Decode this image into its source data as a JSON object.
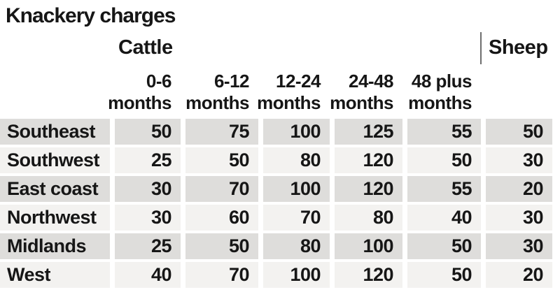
{
  "title": "Knackery charges",
  "groups": {
    "cattle": "Cattle",
    "sheep": "Sheep"
  },
  "columns": [
    {
      "range": "0-6",
      "unit": "months"
    },
    {
      "range": "6-12",
      "unit": "months"
    },
    {
      "range": "12-24",
      "unit": "months"
    },
    {
      "range": "24-48",
      "unit": "months"
    },
    {
      "range": "48 plus",
      "unit": "months"
    }
  ],
  "rows": [
    {
      "label": "Southeast",
      "values": [
        50,
        75,
        100,
        125,
        55
      ],
      "sheep": 50
    },
    {
      "label": "Southwest",
      "values": [
        25,
        50,
        80,
        120,
        50
      ],
      "sheep": 30
    },
    {
      "label": "East coast",
      "values": [
        30,
        70,
        100,
        120,
        55
      ],
      "sheep": 20
    },
    {
      "label": "Northwest",
      "values": [
        30,
        60,
        70,
        80,
        40
      ],
      "sheep": 30
    },
    {
      "label": "Midlands",
      "values": [
        25,
        50,
        80,
        100,
        50
      ],
      "sheep": 30
    },
    {
      "label": "West",
      "values": [
        40,
        70,
        100,
        120,
        50
      ],
      "sheep": 20
    }
  ],
  "colors": {
    "row_shaded": "#dedddb",
    "row_light": "#f3f2f0",
    "text": "#161616",
    "divider": "#6f6f6f",
    "background": "#ffffff"
  },
  "chart_data": {
    "type": "table",
    "title": "Knackery charges",
    "column_groups": [
      {
        "name": "Cattle",
        "columns": [
          "0-6 months",
          "6-12 months",
          "12-24 months",
          "24-48 months",
          "48 plus months"
        ]
      },
      {
        "name": "Sheep",
        "columns": [
          "Sheep"
        ]
      }
    ],
    "categories": [
      "Southeast",
      "Southwest",
      "East coast",
      "Northwest",
      "Midlands",
      "West"
    ],
    "series": [
      {
        "name": "Cattle 0-6 months",
        "values": [
          50,
          25,
          30,
          30,
          25,
          40
        ]
      },
      {
        "name": "Cattle 6-12 months",
        "values": [
          75,
          50,
          70,
          60,
          50,
          70
        ]
      },
      {
        "name": "Cattle 12-24 months",
        "values": [
          100,
          80,
          100,
          70,
          80,
          100
        ]
      },
      {
        "name": "Cattle 24-48 months",
        "values": [
          125,
          120,
          120,
          80,
          100,
          120
        ]
      },
      {
        "name": "Cattle 48 plus months",
        "values": [
          55,
          50,
          55,
          40,
          50,
          50
        ]
      },
      {
        "name": "Sheep",
        "values": [
          50,
          30,
          20,
          30,
          30,
          20
        ]
      }
    ],
    "layout": {
      "row_striping": true,
      "first_row_shaded": true,
      "legend_position": "none",
      "grid": false
    }
  }
}
